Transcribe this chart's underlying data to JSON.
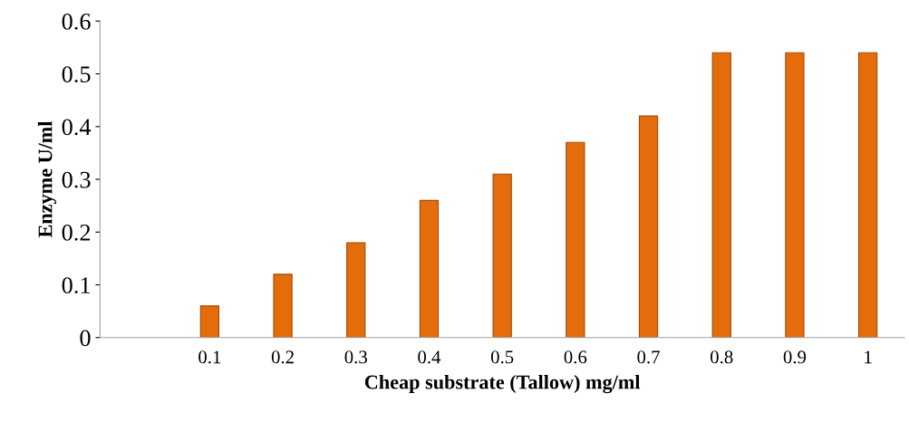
{
  "chart_data": {
    "type": "bar",
    "xlabel": "Cheap substrate (Tallow) mg/ml",
    "ylabel": "Enzyme U/ml",
    "categories": [
      null,
      "0.1",
      "0.2",
      "0.3",
      "0.4",
      "0.5",
      "0.6",
      "0.7",
      "0.8",
      "0.9",
      "1"
    ],
    "values": [
      null,
      0.06,
      0.12,
      0.18,
      0.26,
      0.31,
      0.37,
      0.42,
      0.54,
      0.54,
      0.54
    ],
    "color": "#e46c0a",
    "ylim": [
      0,
      0.6
    ],
    "yticks": [
      0,
      0.1,
      0.2,
      0.3,
      0.4,
      0.5,
      0.6
    ],
    "grid": false,
    "legend": false
  }
}
